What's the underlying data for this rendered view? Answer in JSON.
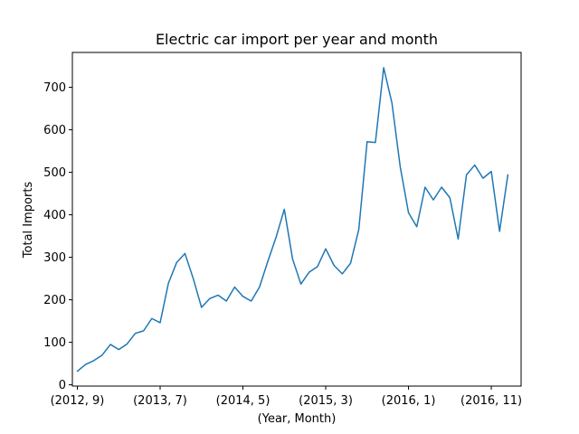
{
  "chart_data": {
    "type": "line",
    "title": "Electric car import per year and month",
    "xlabel": "(Year, Month)",
    "ylabel": "Total Imports",
    "x_tick_labels": [
      "(2012, 9)",
      "(2013, 7)",
      "(2014, 5)",
      "(2015, 3)",
      "(2016, 1)",
      "(2016, 11)"
    ],
    "x_tick_positions": [
      0,
      10,
      20,
      30,
      40,
      50
    ],
    "y_ticks": [
      0,
      100,
      200,
      300,
      400,
      500,
      600,
      700
    ],
    "ylim": [
      -3,
      782
    ],
    "xlim": [
      -0.6,
      53.6
    ],
    "grid": false,
    "legend": "none",
    "series_color": "#1f77b4",
    "series": [
      {
        "values": [
          32,
          48,
          57,
          70,
          95,
          83,
          96,
          121,
          127,
          156,
          146,
          239,
          288,
          309,
          250,
          182,
          203,
          211,
          197,
          230,
          208,
          197,
          230,
          290,
          347,
          413,
          296,
          237,
          265,
          278,
          320,
          281,
          261,
          286,
          366,
          572,
          570,
          746,
          663,
          513,
          405,
          372,
          465,
          435,
          465,
          440,
          343,
          494,
          517,
          486,
          502,
          361,
          494
        ]
      }
    ]
  }
}
